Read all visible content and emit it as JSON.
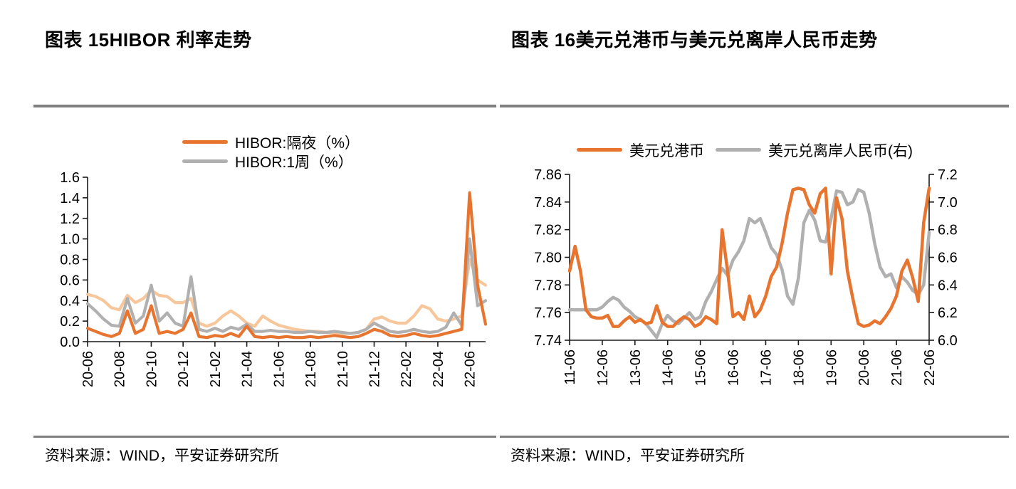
{
  "page": {
    "background": "#ffffff",
    "accent_orange": "#E8752F",
    "accent_gray": "#B0B0B0",
    "accent_light_orange": "#F7C69B",
    "divider_color": "#7F7F7F"
  },
  "chart_data": [
    {
      "type": "line",
      "title": "图表 15HIBOR 利率走势",
      "source": "资料来源：WIND，平安证券研究所",
      "legend_position": "top-center stacked",
      "grid": "off",
      "x_tick_labels": [
        "20-06",
        "20-08",
        "20-10",
        "20-12",
        "21-02",
        "21-04",
        "21-06",
        "21-08",
        "21-10",
        "21-12",
        "22-02",
        "22-04",
        "22-06"
      ],
      "x_tick_step": 4,
      "axes": {
        "left": {
          "lim": [
            0.0,
            1.6
          ],
          "ticks": [
            "0.0",
            "0.2",
            "0.4",
            "0.6",
            "0.8",
            "1.0",
            "1.2",
            "1.4",
            "1.6"
          ]
        }
      },
      "series": [
        {
          "name": "HIBOR:隔夜（%）",
          "color": "#E8752F",
          "axis": "left",
          "values": [
            0.13,
            0.1,
            0.07,
            0.05,
            0.08,
            0.3,
            0.08,
            0.12,
            0.35,
            0.08,
            0.1,
            0.08,
            0.12,
            0.28,
            0.05,
            0.04,
            0.06,
            0.05,
            0.08,
            0.05,
            0.15,
            0.05,
            0.04,
            0.05,
            0.04,
            0.05,
            0.04,
            0.04,
            0.05,
            0.04,
            0.05,
            0.06,
            0.05,
            0.04,
            0.05,
            0.08,
            0.12,
            0.1,
            0.06,
            0.05,
            0.06,
            0.08,
            0.06,
            0.05,
            0.06,
            0.08,
            0.1,
            0.12,
            1.45,
            0.55,
            0.17
          ]
        },
        {
          "name": "HIBOR:1周（%）",
          "color": "#B0B0B0",
          "axis": "left",
          "values": [
            0.37,
            0.3,
            0.22,
            0.16,
            0.15,
            0.42,
            0.18,
            0.25,
            0.55,
            0.2,
            0.28,
            0.18,
            0.15,
            0.63,
            0.12,
            0.1,
            0.13,
            0.1,
            0.14,
            0.12,
            0.17,
            0.1,
            0.1,
            0.11,
            0.1,
            0.1,
            0.09,
            0.09,
            0.1,
            0.09,
            0.09,
            0.1,
            0.09,
            0.08,
            0.09,
            0.12,
            0.18,
            0.14,
            0.1,
            0.09,
            0.1,
            0.12,
            0.1,
            0.09,
            0.1,
            0.14,
            0.28,
            0.16,
            1.0,
            0.35,
            0.4
          ]
        },
        {
          "name": "",
          "color": "#F7C69B",
          "axis": "left",
          "values": [
            0.46,
            0.44,
            0.4,
            0.33,
            0.31,
            0.45,
            0.38,
            0.42,
            0.5,
            0.45,
            0.44,
            0.38,
            0.38,
            0.42,
            0.18,
            0.15,
            0.18,
            0.25,
            0.3,
            0.25,
            0.18,
            0.15,
            0.25,
            0.2,
            0.16,
            0.14,
            0.12,
            0.11,
            0.1,
            0.1,
            0.09,
            0.09,
            0.08,
            0.08,
            0.09,
            0.12,
            0.22,
            0.24,
            0.2,
            0.18,
            0.18,
            0.25,
            0.35,
            0.32,
            0.22,
            0.2,
            0.22,
            0.25,
            0.8,
            0.6,
            0.55
          ]
        }
      ]
    },
    {
      "type": "line",
      "title": "图表 16美元兑港币与美元兑离岸人民币走势",
      "source": "资料来源：WIND，平安证券研究所",
      "legend_position": "top-center horizontal",
      "grid": "off",
      "x_tick_labels": [
        "11-06",
        "12-06",
        "13-06",
        "14-06",
        "15-06",
        "16-06",
        "17-06",
        "18-06",
        "19-06",
        "20-06",
        "21-06",
        "22-06"
      ],
      "x_tick_step": 6,
      "axes": {
        "left": {
          "lim": [
            7.74,
            7.86
          ],
          "ticks": [
            "7.74",
            "7.76",
            "7.78",
            "7.80",
            "7.82",
            "7.84",
            "7.86"
          ]
        },
        "right": {
          "lim": [
            6.0,
            7.2
          ],
          "ticks": [
            "6.0",
            "6.2",
            "6.4",
            "6.6",
            "6.8",
            "7.0",
            "7.2"
          ]
        }
      },
      "series": [
        {
          "name": "美元兑港币",
          "color": "#E8752F",
          "axis": "left",
          "values": [
            7.79,
            7.808,
            7.79,
            7.762,
            7.757,
            7.756,
            7.756,
            7.758,
            7.75,
            7.75,
            7.754,
            7.757,
            7.753,
            7.755,
            7.752,
            7.753,
            7.765,
            7.753,
            7.75,
            7.75,
            7.754,
            7.757,
            7.755,
            7.75,
            7.752,
            7.757,
            7.755,
            7.752,
            7.82,
            7.79,
            7.757,
            7.76,
            7.755,
            7.772,
            7.757,
            7.762,
            7.772,
            7.786,
            7.793,
            7.81,
            7.832,
            7.849,
            7.85,
            7.849,
            7.838,
            7.832,
            7.846,
            7.85,
            7.788,
            7.843,
            7.828,
            7.79,
            7.77,
            7.752,
            7.75,
            7.751,
            7.754,
            7.752,
            7.757,
            7.763,
            7.772,
            7.79,
            7.798,
            7.785,
            7.768,
            7.825,
            7.85
          ]
        },
        {
          "name": "美元兑离岸人民币(右)",
          "color": "#B0B0B0",
          "axis": "right",
          "values": [
            6.22,
            6.22,
            6.22,
            6.22,
            6.22,
            6.22,
            6.24,
            6.28,
            6.31,
            6.29,
            6.24,
            6.21,
            6.17,
            6.15,
            6.12,
            6.07,
            6.02,
            6.12,
            6.18,
            6.14,
            6.12,
            6.16,
            6.2,
            6.15,
            6.17,
            6.28,
            6.35,
            6.44,
            6.52,
            6.47,
            6.58,
            6.64,
            6.72,
            6.88,
            6.85,
            6.88,
            6.78,
            6.67,
            6.62,
            6.51,
            6.32,
            6.26,
            6.45,
            6.85,
            6.94,
            6.87,
            6.72,
            6.71,
            6.88,
            7.08,
            7.07,
            6.98,
            7.0,
            7.09,
            7.07,
            6.92,
            6.7,
            6.53,
            6.46,
            6.48,
            6.38,
            6.46,
            6.42,
            6.36,
            6.33,
            6.4,
            6.78
          ]
        }
      ]
    }
  ]
}
